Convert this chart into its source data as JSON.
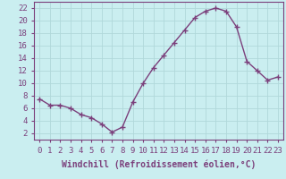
{
  "x": [
    0,
    1,
    2,
    3,
    4,
    5,
    6,
    7,
    8,
    9,
    10,
    11,
    12,
    13,
    14,
    15,
    16,
    17,
    18,
    19,
    20,
    21,
    22,
    23
  ],
  "y": [
    7.5,
    6.5,
    6.5,
    6.0,
    5.0,
    4.5,
    3.5,
    2.2,
    3.0,
    7.0,
    10.0,
    12.5,
    14.5,
    16.5,
    18.5,
    20.5,
    21.5,
    22.0,
    21.5,
    19.0,
    13.5,
    12.0,
    10.5,
    11.0
  ],
  "line_color": "#7b3f7b",
  "marker_color": "#7b3f7b",
  "bg_color": "#caeef0",
  "grid_color": "#b0d8da",
  "xlabel": "Windchill (Refroidissement éolien,°C)",
  "xlim": [
    -0.5,
    23.5
  ],
  "ylim": [
    1,
    23
  ],
  "yticks": [
    2,
    4,
    6,
    8,
    10,
    12,
    14,
    16,
    18,
    20,
    22
  ],
  "xticks": [
    0,
    1,
    2,
    3,
    4,
    5,
    6,
    7,
    8,
    9,
    10,
    11,
    12,
    13,
    14,
    15,
    16,
    17,
    18,
    19,
    20,
    21,
    22,
    23
  ],
  "font_size": 6.5,
  "xlabel_fontsize": 7,
  "marker_size": 2.5,
  "line_width": 1.0
}
